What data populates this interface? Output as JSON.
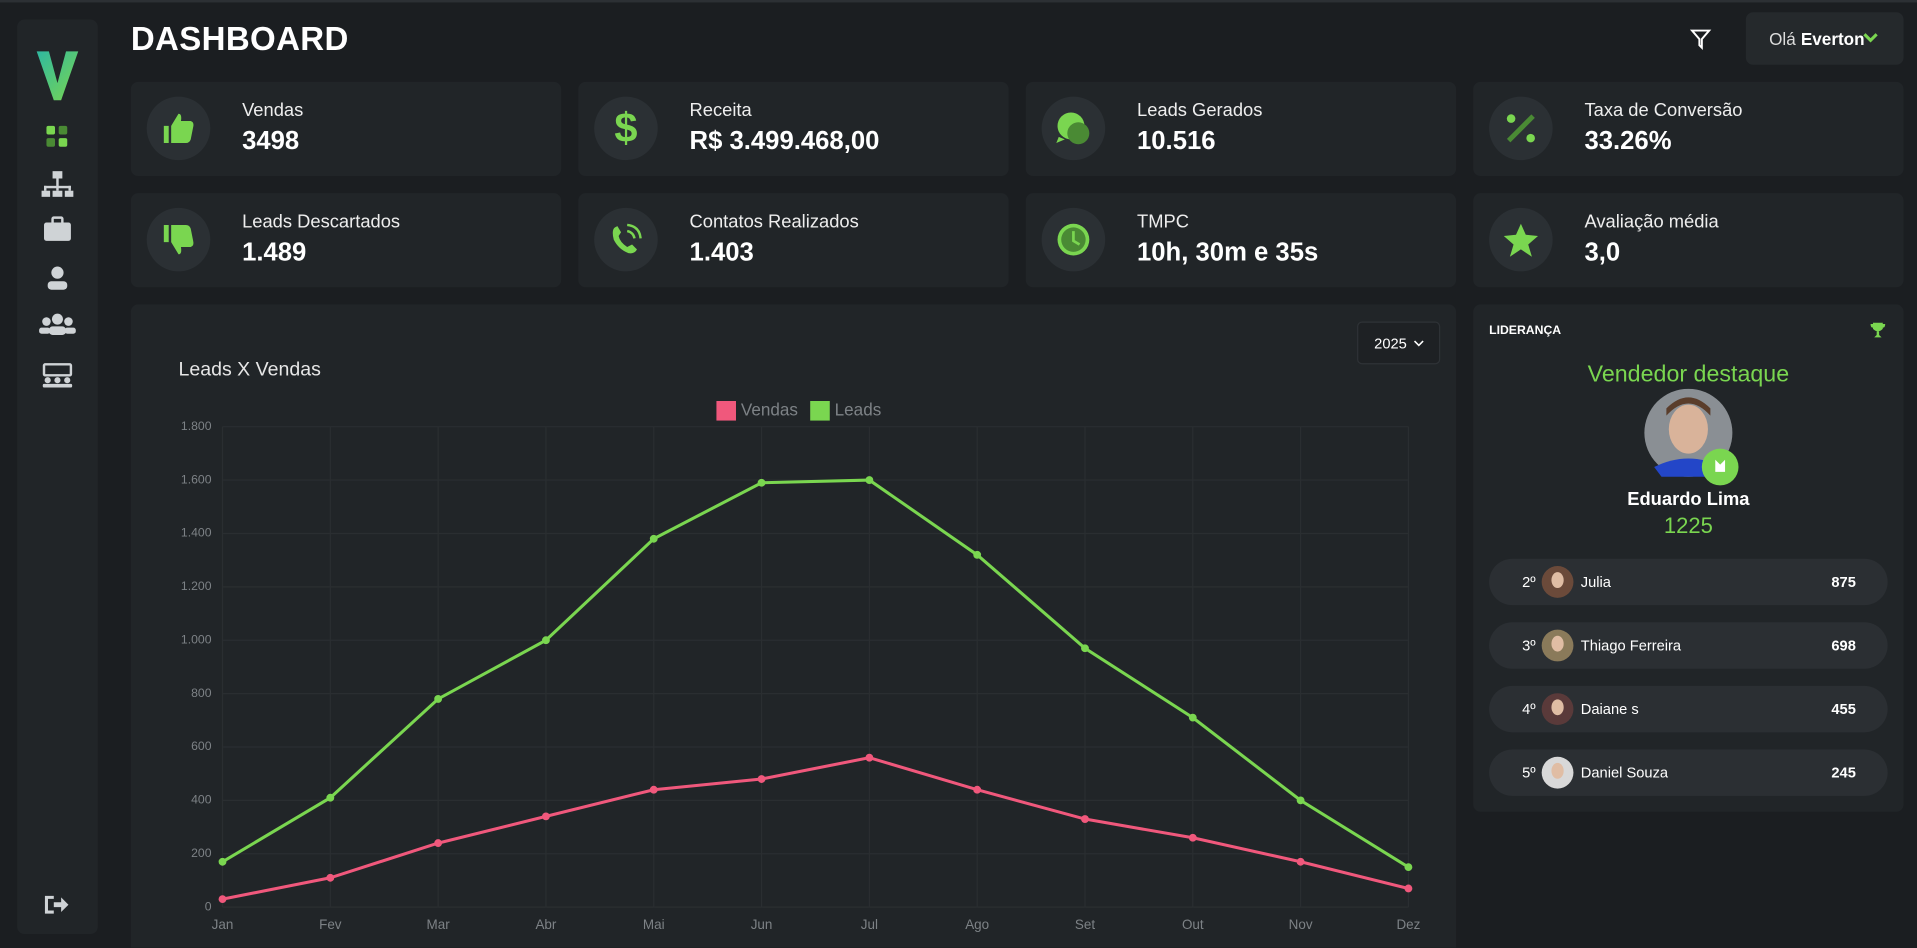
{
  "header": {
    "title": "DASHBOARD",
    "greeting": "Olá",
    "user": "Everton"
  },
  "cards": [
    {
      "label": "Vendas",
      "value": "3498"
    },
    {
      "label": "Receita",
      "value": "R$ 3.499.468,00"
    },
    {
      "label": "Leads Gerados",
      "value": "10.516"
    },
    {
      "label": "Taxa de Conversão",
      "value": "33.26%"
    },
    {
      "label": "Leads Descartados",
      "value": "1.489"
    },
    {
      "label": "Contatos Realizados",
      "value": "1.403"
    },
    {
      "label": "TMPC",
      "value": "10h, 30m e 35s"
    },
    {
      "label": "Avaliação média",
      "value": "3,0"
    }
  ],
  "filter": {
    "year": "2025"
  },
  "chart_data": {
    "type": "line",
    "title": "Leads X Vendas",
    "categories": [
      "Jan",
      "Fev",
      "Mar",
      "Abr",
      "Mai",
      "Jun",
      "Jul",
      "Ago",
      "Set",
      "Out",
      "Nov",
      "Dez"
    ],
    "series": [
      {
        "name": "Vendas",
        "color": "#f0587c",
        "values": [
          30,
          110,
          240,
          340,
          440,
          480,
          560,
          440,
          330,
          260,
          170,
          70
        ]
      },
      {
        "name": "Leads",
        "color": "#7ad650",
        "values": [
          170,
          410,
          780,
          1000,
          1380,
          1590,
          1600,
          1320,
          970,
          710,
          400,
          150
        ]
      }
    ],
    "ylim": [
      0,
      1800
    ],
    "yticks": [
      0,
      200,
      400,
      600,
      800,
      {
        "value": 1000,
        "label": "1.000"
      },
      {
        "value": 1200,
        "label": "1.200"
      },
      {
        "value": 1400,
        "label": "1.400"
      },
      {
        "value": 1600,
        "label": "1.600"
      },
      {
        "value": 1800,
        "label": "1.800"
      }
    ],
    "grid": true,
    "legend": "top"
  },
  "leaderboard": {
    "title": "LIDERANÇA",
    "featured_title": "Vendedor destaque",
    "featured": {
      "name": "Eduardo Lima",
      "score": "1225"
    },
    "rows": [
      {
        "rank": "2º",
        "name": "Julia",
        "score": "875"
      },
      {
        "rank": "3º",
        "name": "Thiago Ferreira",
        "score": "698"
      },
      {
        "rank": "4º",
        "name": "Daiane s",
        "score": "455"
      },
      {
        "rank": "5º",
        "name": "Daniel Souza",
        "score": "245"
      }
    ]
  }
}
